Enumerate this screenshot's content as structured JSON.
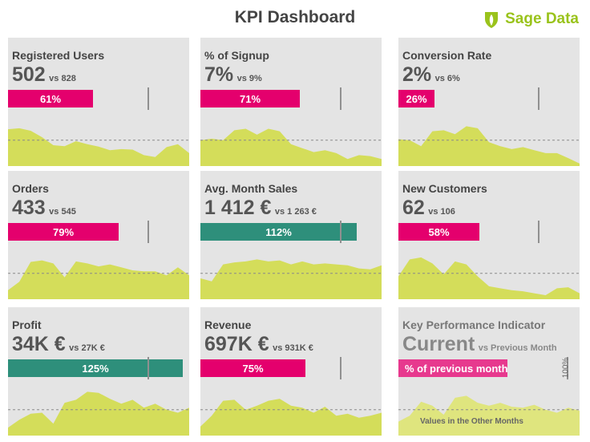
{
  "header": {
    "title": "KPI Dashboard",
    "logo_text": "Sage Data",
    "logo_color": "#9ac31c"
  },
  "colors": {
    "bad": "#e4006d",
    "good": "#2e8f7b",
    "area": "#d4dd5a",
    "card": "#e4e4e4"
  },
  "cards": [
    {
      "title": "Registered Users",
      "value": "502",
      "vs": "vs 828",
      "pct": 61,
      "pct_label": "61%",
      "status": "bad",
      "trend": [
        0.74,
        0.76,
        0.71,
        0.58,
        0.42,
        0.4,
        0.5,
        0.44,
        0.39,
        0.32,
        0.34,
        0.33,
        0.22,
        0.18,
        0.38,
        0.44,
        0.26
      ]
    },
    {
      "title": "% of Signup",
      "value": "7%",
      "vs": "vs 9%",
      "pct": 71,
      "pct_label": "71%",
      "status": "bad",
      "trend": [
        0.52,
        0.55,
        0.52,
        0.72,
        0.75,
        0.63,
        0.75,
        0.7,
        0.44,
        0.36,
        0.28,
        0.32,
        0.26,
        0.14,
        0.22,
        0.2,
        0.14
      ]
    },
    {
      "title": "Conversion Rate",
      "value": "2%",
      "vs": "vs 6%",
      "pct": 26,
      "pct_label": "26%",
      "status": "bad",
      "trend": [
        0.54,
        0.52,
        0.4,
        0.7,
        0.72,
        0.64,
        0.8,
        0.76,
        0.48,
        0.4,
        0.34,
        0.38,
        0.32,
        0.26,
        0.26,
        0.16,
        0.05
      ]
    },
    {
      "title": "Orders",
      "value": "433",
      "vs": "vs 545",
      "pct": 79,
      "pct_label": "79%",
      "status": "bad",
      "trend": [
        0.18,
        0.35,
        0.75,
        0.78,
        0.72,
        0.44,
        0.76,
        0.72,
        0.66,
        0.7,
        0.64,
        0.58,
        0.56,
        0.56,
        0.48,
        0.64,
        0.48
      ]
    },
    {
      "title": "Avg. Month Sales",
      "value": "1 412 €",
      "vs": "vs 1 263 €",
      "pct": 112,
      "pct_label": "112%",
      "status": "good",
      "trend": [
        0.42,
        0.36,
        0.7,
        0.74,
        0.76,
        0.8,
        0.76,
        0.78,
        0.7,
        0.76,
        0.7,
        0.72,
        0.7,
        0.68,
        0.62,
        0.6,
        0.68
      ]
    },
    {
      "title": "New Customers",
      "value": "62",
      "vs": "vs 106",
      "pct": 58,
      "pct_label": "58%",
      "status": "bad",
      "trend": [
        0.46,
        0.8,
        0.84,
        0.72,
        0.5,
        0.76,
        0.7,
        0.46,
        0.26,
        0.22,
        0.18,
        0.16,
        0.12,
        0.08,
        0.22,
        0.24,
        0.12
      ]
    },
    {
      "title": "Profit",
      "value": "34K €",
      "vs": "vs 27K €",
      "pct": 125,
      "pct_label": "125%",
      "status": "good",
      "trend": [
        0.16,
        0.32,
        0.44,
        0.46,
        0.24,
        0.66,
        0.72,
        0.88,
        0.86,
        0.74,
        0.64,
        0.72,
        0.56,
        0.64,
        0.52,
        0.46,
        0.56
      ]
    },
    {
      "title": "Revenue",
      "value": "697K €",
      "vs": "vs 931K €",
      "pct": 75,
      "pct_label": "75%",
      "status": "bad",
      "trend": [
        0.18,
        0.4,
        0.7,
        0.72,
        0.52,
        0.6,
        0.7,
        0.74,
        0.6,
        0.56,
        0.46,
        0.58,
        0.4,
        0.44,
        0.36,
        0.4,
        0.46
      ]
    }
  ],
  "legend": {
    "title": "Key Performance Indicator",
    "current_label": "Current",
    "vs_label": "vs Previous Month",
    "bar_label": "% of previous month",
    "target_label": "100%",
    "area_label": "Values in the Other Months",
    "pct": 78,
    "trend": [
      0.28,
      0.4,
      0.68,
      0.6,
      0.42,
      0.76,
      0.8,
      0.66,
      0.6,
      0.66,
      0.58,
      0.56,
      0.62,
      0.52,
      0.46,
      0.56,
      0.5
    ]
  }
}
